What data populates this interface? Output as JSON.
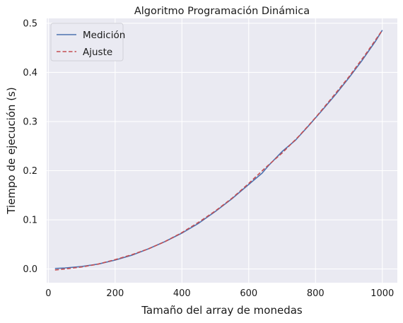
{
  "chart_data": {
    "type": "line",
    "title": "Algoritmo Programación Dinámica",
    "xlabel": "Tamaño del array de monedas",
    "ylabel": "Tiempo de ejecución (s)",
    "xlim": [
      -5,
      1045
    ],
    "ylim": [
      -0.028,
      0.51
    ],
    "xticks": [
      0,
      200,
      400,
      600,
      800,
      1000
    ],
    "yticks": [
      0.0,
      0.1,
      0.2,
      0.3,
      0.4,
      0.5
    ],
    "xtick_labels": [
      "0",
      "200",
      "400",
      "600",
      "800",
      "1000"
    ],
    "ytick_labels": [
      "0.0",
      "0.1",
      "0.2",
      "0.3",
      "0.4",
      "0.5"
    ],
    "grid": true,
    "legend_position": "top-left",
    "series": [
      {
        "name": "Medición",
        "color": "#4c72b0",
        "style": "solid",
        "x": [
          20,
          50,
          100,
          150,
          200,
          250,
          300,
          350,
          400,
          450,
          500,
          550,
          600,
          640,
          660,
          700,
          740,
          780,
          820,
          860,
          900,
          940,
          980,
          1000
        ],
        "y": [
          0.001,
          0.002,
          0.005,
          0.01,
          0.018,
          0.028,
          0.041,
          0.056,
          0.073,
          0.093,
          0.117,
          0.143,
          0.172,
          0.195,
          0.211,
          0.239,
          0.262,
          0.292,
          0.323,
          0.355,
          0.389,
          0.425,
          0.464,
          0.486
        ]
      },
      {
        "name": "Ajuste",
        "color": "#c44e52",
        "style": "dashed",
        "x": [
          20,
          50,
          100,
          150,
          200,
          250,
          300,
          350,
          400,
          450,
          500,
          550,
          600,
          650,
          700,
          750,
          800,
          850,
          900,
          950,
          1000
        ],
        "y": [
          -0.002,
          0.0,
          0.004,
          0.01,
          0.019,
          0.029,
          0.041,
          0.056,
          0.074,
          0.095,
          0.118,
          0.144,
          0.174,
          0.206,
          0.236,
          0.27,
          0.308,
          0.349,
          0.391,
          0.437,
          0.486
        ]
      }
    ]
  }
}
